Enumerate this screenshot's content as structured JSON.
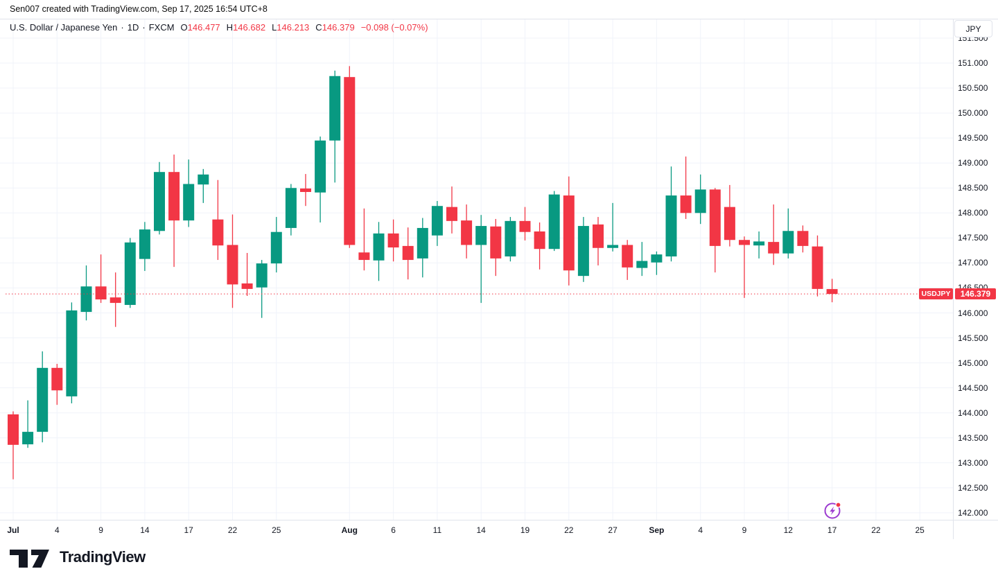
{
  "attribution": "Sen007 created with TradingView.com, Sep 17, 2025 16:54 UTC+8",
  "legend": {
    "title": "U.S. Dollar / Japanese Yen",
    "separator": "·",
    "interval": "1D",
    "exchange": "FXCM",
    "ohlc": {
      "o_label": "O",
      "o": "146.477",
      "h_label": "H",
      "h": "146.682",
      "l_label": "L",
      "l": "146.213",
      "c_label": "C",
      "c": "146.379",
      "change": "−0.098 (−0.07%)"
    }
  },
  "price_axis": {
    "currency": "JPY",
    "labels": [
      "151.500",
      "151.000",
      "150.500",
      "150.000",
      "149.500",
      "149.000",
      "148.500",
      "148.000",
      "147.500",
      "147.000",
      "146.500",
      "146.000",
      "145.500",
      "145.000",
      "144.500",
      "144.000",
      "143.500",
      "143.000",
      "142.500",
      "142.000"
    ],
    "symbol_badge": "USDJPY",
    "last_price_badge": "146.379"
  },
  "time_axis": {
    "ticks": [
      {
        "label": "Jul",
        "slot": 0,
        "major": true
      },
      {
        "label": "4",
        "slot": 3,
        "major": false
      },
      {
        "label": "9",
        "slot": 6,
        "major": false
      },
      {
        "label": "14",
        "slot": 9,
        "major": false
      },
      {
        "label": "17",
        "slot": 12,
        "major": false
      },
      {
        "label": "22",
        "slot": 15,
        "major": false
      },
      {
        "label": "25",
        "slot": 18,
        "major": false
      },
      {
        "label": "Aug",
        "slot": 23,
        "major": true
      },
      {
        "label": "6",
        "slot": 26,
        "major": false
      },
      {
        "label": "11",
        "slot": 29,
        "major": false
      },
      {
        "label": "14",
        "slot": 32,
        "major": false
      },
      {
        "label": "19",
        "slot": 35,
        "major": false
      },
      {
        "label": "22",
        "slot": 38,
        "major": false
      },
      {
        "label": "27",
        "slot": 41,
        "major": false
      },
      {
        "label": "Sep",
        "slot": 44,
        "major": true
      },
      {
        "label": "4",
        "slot": 47,
        "major": false
      },
      {
        "label": "9",
        "slot": 50,
        "major": false
      },
      {
        "label": "12",
        "slot": 53,
        "major": false
      },
      {
        "label": "17",
        "slot": 56,
        "major": false
      },
      {
        "label": "22",
        "slot": 59,
        "major": false
      },
      {
        "label": "25",
        "slot": 62,
        "major": false
      }
    ]
  },
  "footer": {
    "logo_text": "TradingView"
  },
  "colors": {
    "up": "#089981",
    "down": "#F23645",
    "accent_red": "#F23645",
    "text": "#131722",
    "grid": "#F0F3FA",
    "border": "#E0E3EB",
    "marker_purple": "#9C3BD0"
  },
  "chart_data": {
    "type": "candlestick",
    "title": "U.S. Dollar / Japanese Yen, 1D, FXCM",
    "ylabel": "JPY",
    "ylim": [
      142.0,
      151.5
    ],
    "grid": true,
    "legend_position": "top-left",
    "last_close": 146.379,
    "dates": [
      "Jul 1",
      "Jul 2",
      "Jul 3",
      "Jul 4",
      "Jul 7",
      "Jul 8",
      "Jul 9",
      "Jul 10",
      "Jul 11",
      "Jul 14",
      "Jul 15",
      "Jul 16",
      "Jul 17",
      "Jul 18",
      "Jul 21",
      "Jul 22",
      "Jul 23",
      "Jul 24",
      "Jul 25",
      "Jul 28",
      "Jul 29",
      "Jul 30",
      "Jul 31",
      "Aug 1",
      "Aug 4",
      "Aug 5",
      "Aug 6",
      "Aug 7",
      "Aug 8",
      "Aug 11",
      "Aug 12",
      "Aug 13",
      "Aug 14",
      "Aug 15",
      "Aug 18",
      "Aug 19",
      "Aug 20",
      "Aug 21",
      "Aug 22",
      "Aug 25",
      "Aug 26",
      "Aug 27",
      "Aug 28",
      "Aug 29",
      "Sep 1",
      "Sep 2",
      "Sep 3",
      "Sep 4",
      "Sep 5",
      "Sep 8",
      "Sep 9",
      "Sep 10",
      "Sep 11",
      "Sep 12",
      "Sep 15",
      "Sep 16",
      "Sep 17"
    ],
    "open": [
      143.97,
      143.37,
      143.62,
      144.9,
      144.33,
      146.02,
      146.53,
      146.31,
      146.16,
      147.08,
      147.64,
      148.82,
      147.85,
      148.57,
      147.87,
      147.36,
      146.59,
      146.51,
      146.99,
      147.7,
      148.49,
      148.41,
      149.45,
      150.72,
      147.21,
      147.05,
      147.59,
      147.34,
      147.09,
      147.55,
      148.12,
      147.85,
      147.36,
      147.73,
      147.13,
      147.84,
      147.63,
      147.28,
      148.35,
      146.74,
      147.77,
      147.3,
      147.36,
      146.9,
      147.01,
      147.13,
      148.35,
      148.0,
      148.47,
      148.12,
      147.46,
      147.35,
      147.42,
      147.19,
      147.64,
      147.33,
      146.477
    ],
    "high": [
      144.03,
      144.25,
      145.23,
      144.98,
      146.21,
      146.95,
      147.17,
      146.81,
      147.5,
      147.82,
      149.02,
      149.17,
      149.07,
      148.88,
      148.66,
      147.97,
      147.2,
      147.06,
      147.92,
      148.58,
      148.78,
      149.53,
      150.85,
      150.94,
      148.09,
      147.82,
      147.87,
      147.71,
      147.9,
      148.24,
      148.53,
      148.17,
      147.96,
      147.88,
      147.92,
      148.12,
      147.81,
      148.44,
      148.73,
      147.92,
      147.92,
      148.2,
      147.46,
      147.42,
      147.23,
      148.93,
      149.13,
      148.77,
      148.5,
      148.56,
      147.53,
      147.63,
      148.17,
      148.09,
      147.75,
      147.55,
      146.682
    ],
    "low": [
      142.67,
      143.3,
      143.41,
      144.16,
      144.19,
      145.85,
      146.2,
      145.72,
      146.1,
      146.84,
      147.57,
      146.92,
      147.72,
      148.2,
      147.06,
      146.1,
      146.34,
      145.9,
      146.81,
      147.55,
      148.14,
      147.81,
      148.61,
      147.3,
      146.85,
      146.64,
      147.03,
      146.67,
      146.71,
      147.34,
      147.59,
      147.09,
      146.2,
      146.74,
      147.03,
      147.45,
      146.87,
      147.24,
      146.55,
      146.62,
      146.95,
      147.23,
      146.66,
      146.74,
      146.76,
      147.03,
      147.88,
      147.78,
      146.81,
      147.33,
      146.3,
      147.09,
      146.96,
      147.09,
      147.21,
      146.33,
      146.213
    ],
    "close": [
      143.36,
      143.62,
      144.9,
      144.45,
      146.05,
      146.53,
      146.27,
      146.2,
      147.41,
      147.67,
      148.82,
      147.85,
      148.58,
      148.77,
      147.35,
      146.57,
      146.48,
      146.99,
      147.62,
      148.5,
      148.42,
      149.45,
      150.74,
      147.36,
      147.06,
      147.59,
      147.31,
      147.06,
      147.7,
      148.14,
      147.84,
      147.36,
      147.74,
      147.09,
      147.84,
      147.62,
      147.28,
      148.37,
      146.85,
      147.74,
      147.3,
      147.36,
      146.91,
      147.04,
      147.17,
      148.35,
      148.0,
      148.47,
      147.34,
      147.46,
      147.36,
      147.43,
      147.19,
      147.64,
      147.34,
      146.48,
      146.379
    ]
  }
}
